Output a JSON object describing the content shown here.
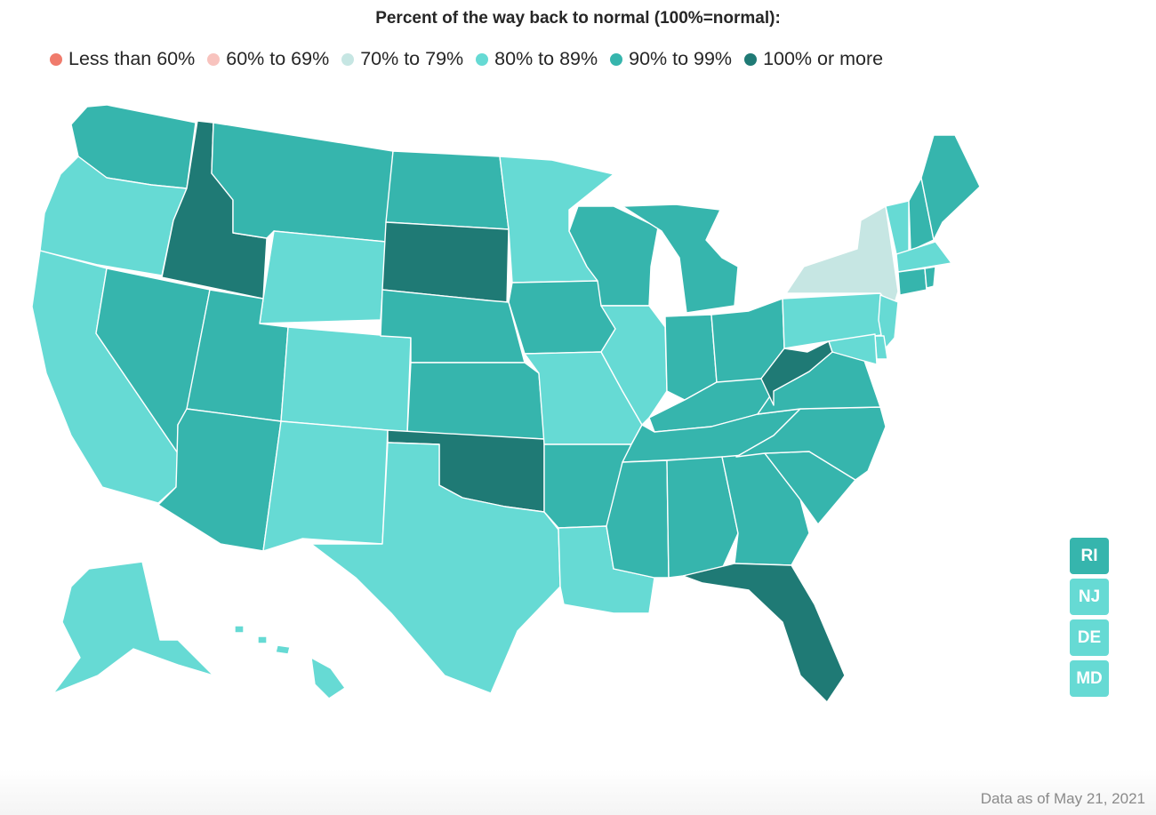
{
  "title": "Percent of the way back to normal (100%=normal):",
  "legend": [
    {
      "label": "Less than 60%",
      "color": "#f07b6c"
    },
    {
      "label": "60% to 69%",
      "color": "#f8c3be"
    },
    {
      "label": "70% to 79%",
      "color": "#c6e6e3"
    },
    {
      "label": "80% to 89%",
      "color": "#66dad4"
    },
    {
      "label": "90% to 99%",
      "color": "#36b5ad"
    },
    {
      "label": "100% or more",
      "color": "#1f7a75"
    }
  ],
  "small_states": [
    {
      "abbr": "RI",
      "level": "90% to 99%",
      "color": "#36b5ad"
    },
    {
      "abbr": "NJ",
      "level": "80% to 89%",
      "color": "#66dad4"
    },
    {
      "abbr": "DE",
      "level": "80% to 89%",
      "color": "#66dad4"
    },
    {
      "abbr": "MD",
      "level": "80% to 89%",
      "color": "#66dad4"
    }
  ],
  "states": {
    "WA": {
      "level": "90% to 99%",
      "color": "#36b5ad"
    },
    "OR": {
      "level": "80% to 89%",
      "color": "#66dad4"
    },
    "CA": {
      "level": "80% to 89%",
      "color": "#66dad4"
    },
    "ID": {
      "level": "100% or more",
      "color": "#1f7a75"
    },
    "NV": {
      "level": "90% to 99%",
      "color": "#36b5ad"
    },
    "MT": {
      "level": "90% to 99%",
      "color": "#36b5ad"
    },
    "WY": {
      "level": "80% to 89%",
      "color": "#66dad4"
    },
    "UT": {
      "level": "90% to 99%",
      "color": "#36b5ad"
    },
    "AZ": {
      "level": "90% to 99%",
      "color": "#36b5ad"
    },
    "CO": {
      "level": "80% to 89%",
      "color": "#66dad4"
    },
    "NM": {
      "level": "80% to 89%",
      "color": "#66dad4"
    },
    "ND": {
      "level": "90% to 99%",
      "color": "#36b5ad"
    },
    "SD": {
      "level": "100% or more",
      "color": "#1f7a75"
    },
    "NE": {
      "level": "90% to 99%",
      "color": "#36b5ad"
    },
    "KS": {
      "level": "90% to 99%",
      "color": "#36b5ad"
    },
    "OK": {
      "level": "100% or more",
      "color": "#1f7a75"
    },
    "TX": {
      "level": "80% to 89%",
      "color": "#66dad4"
    },
    "MN": {
      "level": "80% to 89%",
      "color": "#66dad4"
    },
    "IA": {
      "level": "90% to 99%",
      "color": "#36b5ad"
    },
    "MO": {
      "level": "80% to 89%",
      "color": "#66dad4"
    },
    "AR": {
      "level": "90% to 99%",
      "color": "#36b5ad"
    },
    "LA": {
      "level": "80% to 89%",
      "color": "#66dad4"
    },
    "WI": {
      "level": "90% to 99%",
      "color": "#36b5ad"
    },
    "IL": {
      "level": "80% to 89%",
      "color": "#66dad4"
    },
    "MI": {
      "level": "90% to 99%",
      "color": "#36b5ad"
    },
    "IN": {
      "level": "90% to 99%",
      "color": "#36b5ad"
    },
    "OH": {
      "level": "90% to 99%",
      "color": "#36b5ad"
    },
    "KY": {
      "level": "90% to 99%",
      "color": "#36b5ad"
    },
    "TN": {
      "level": "90% to 99%",
      "color": "#36b5ad"
    },
    "MS": {
      "level": "90% to 99%",
      "color": "#36b5ad"
    },
    "AL": {
      "level": "90% to 99%",
      "color": "#36b5ad"
    },
    "GA": {
      "level": "90% to 99%",
      "color": "#36b5ad"
    },
    "FL": {
      "level": "100% or more",
      "color": "#1f7a75"
    },
    "SC": {
      "level": "90% to 99%",
      "color": "#36b5ad"
    },
    "NC": {
      "level": "90% to 99%",
      "color": "#36b5ad"
    },
    "VA": {
      "level": "90% to 99%",
      "color": "#36b5ad"
    },
    "WV": {
      "level": "100% or more",
      "color": "#1f7a75"
    },
    "PA": {
      "level": "80% to 89%",
      "color": "#66dad4"
    },
    "NY": {
      "level": "70% to 79%",
      "color": "#c6e6e3"
    },
    "VT": {
      "level": "80% to 89%",
      "color": "#66dad4"
    },
    "NH": {
      "level": "90% to 99%",
      "color": "#36b5ad"
    },
    "ME": {
      "level": "90% to 99%",
      "color": "#36b5ad"
    },
    "MA": {
      "level": "80% to 89%",
      "color": "#66dad4"
    },
    "CT": {
      "level": "90% to 99%",
      "color": "#36b5ad"
    },
    "RI": {
      "level": "90% to 99%",
      "color": "#36b5ad"
    },
    "NJ": {
      "level": "80% to 89%",
      "color": "#66dad4"
    },
    "DE": {
      "level": "80% to 89%",
      "color": "#66dad4"
    },
    "MD": {
      "level": "80% to 89%",
      "color": "#66dad4"
    },
    "AK": {
      "level": "80% to 89%",
      "color": "#66dad4"
    },
    "HI": {
      "level": "80% to 89%",
      "color": "#66dad4"
    }
  },
  "note": "Data as of May 21, 2021"
}
